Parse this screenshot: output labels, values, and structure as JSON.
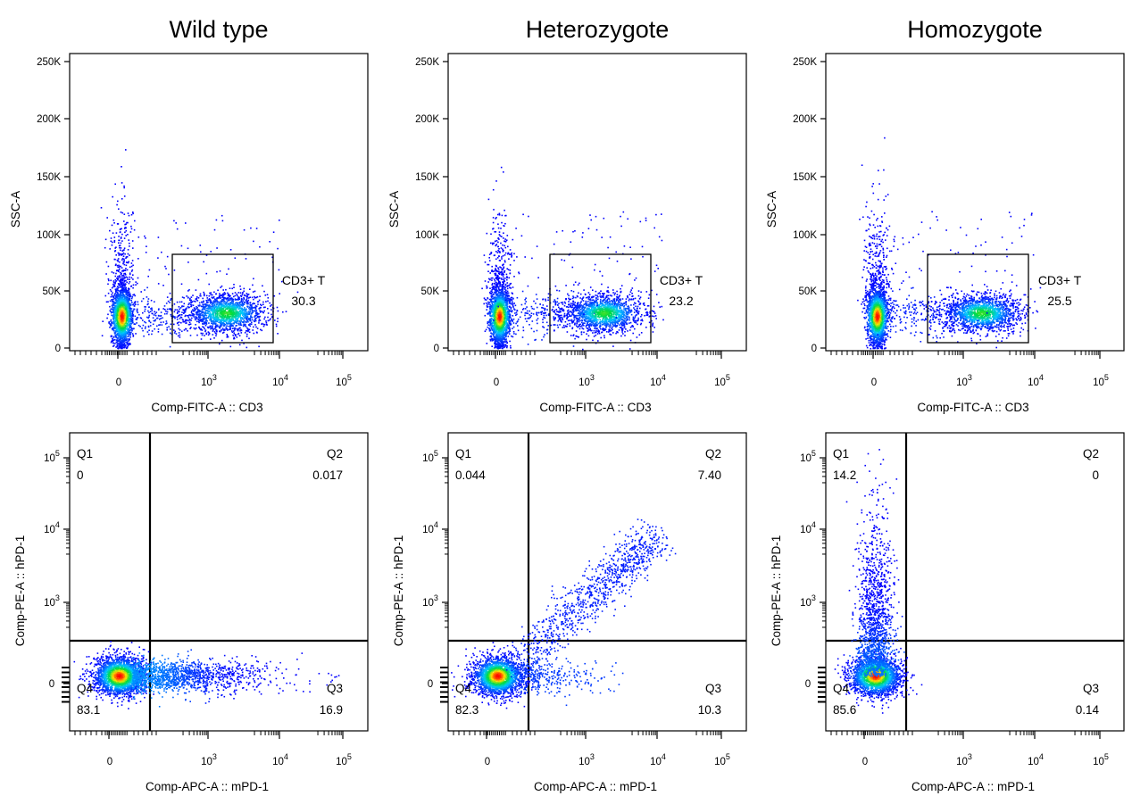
{
  "column_titles": [
    "Wild type",
    "Heterozygote",
    "Homozygote"
  ],
  "chart_data": [
    {
      "type": "scatter",
      "row": "top",
      "column": "Wild type",
      "xlabel": "Comp-FITC-A :: CD3",
      "ylabel": "SSC-A",
      "x_scale": "biexponential",
      "y_scale": "linear",
      "yticks": [
        "0",
        "50K",
        "100K",
        "150K",
        "200K",
        "250K"
      ],
      "xticks": [
        "0",
        "10^3",
        "10^4",
        "10^5"
      ],
      "gate": {
        "name": "CD3+ T",
        "value": "30.3"
      },
      "populations": [
        {
          "name": "CD3- cluster",
          "center": {
            "x": 0,
            "y": 30000
          }
        },
        {
          "name": "CD3+ T cluster",
          "center": {
            "x": 2500,
            "y": 30000
          }
        }
      ]
    },
    {
      "type": "scatter",
      "row": "top",
      "column": "Heterozygote",
      "xlabel": "Comp-FITC-A :: CD3",
      "ylabel": "SSC-A",
      "x_scale": "biexponential",
      "y_scale": "linear",
      "yticks": [
        "0",
        "50K",
        "100K",
        "150K",
        "200K",
        "250K"
      ],
      "xticks": [
        "0",
        "10^3",
        "10^4",
        "10^5"
      ],
      "gate": {
        "name": "CD3+ T",
        "value": "23.2"
      },
      "populations": [
        {
          "name": "CD3- cluster",
          "center": {
            "x": 0,
            "y": 30000
          }
        },
        {
          "name": "CD3+ T cluster",
          "center": {
            "x": 2000,
            "y": 32000
          }
        }
      ]
    },
    {
      "type": "scatter",
      "row": "top",
      "column": "Homozygote",
      "xlabel": "Comp-FITC-A :: CD3",
      "ylabel": "SSC-A",
      "x_scale": "biexponential",
      "y_scale": "linear",
      "yticks": [
        "0",
        "50K",
        "100K",
        "150K",
        "200K",
        "250K"
      ],
      "xticks": [
        "0",
        "10^3",
        "10^4",
        "10^5"
      ],
      "gate": {
        "name": "CD3+ T",
        "value": "25.5"
      },
      "populations": [
        {
          "name": "CD3- cluster",
          "center": {
            "x": 0,
            "y": 30000
          }
        },
        {
          "name": "CD3+ T cluster",
          "center": {
            "x": 2000,
            "y": 32000
          }
        }
      ]
    },
    {
      "type": "scatter",
      "row": "bottom",
      "column": "Wild type",
      "xlabel": "Comp-APC-A :: mPD-1",
      "ylabel": "Comp-PE-A :: hPD-1",
      "x_scale": "biexponential",
      "y_scale": "biexponential",
      "xticks": [
        "0",
        "10^3",
        "10^4",
        "10^5"
      ],
      "yticks": [
        "0",
        "10^3",
        "10^4",
        "10^5"
      ],
      "quadrants": {
        "Q1": "0",
        "Q2": "0.017",
        "Q3": "16.9",
        "Q4": "83.1"
      }
    },
    {
      "type": "scatter",
      "row": "bottom",
      "column": "Heterozygote",
      "xlabel": "Comp-APC-A :: mPD-1",
      "ylabel": "Comp-PE-A :: hPD-1",
      "x_scale": "biexponential",
      "y_scale": "biexponential",
      "xticks": [
        "0",
        "10^3",
        "10^4",
        "10^5"
      ],
      "yticks": [
        "0",
        "10^3",
        "10^4",
        "10^5"
      ],
      "quadrants": {
        "Q1": "0.044",
        "Q2": "7.40",
        "Q3": "10.3",
        "Q4": "82.3"
      }
    },
    {
      "type": "scatter",
      "row": "bottom",
      "column": "Homozygote",
      "xlabel": "Comp-APC-A :: mPD-1",
      "ylabel": "Comp-PE-A :: hPD-1",
      "x_scale": "biexponential",
      "y_scale": "biexponential",
      "xticks": [
        "0",
        "10^3",
        "10^4",
        "10^5"
      ],
      "yticks": [
        "0",
        "10^3",
        "10^4",
        "10^5"
      ],
      "quadrants": {
        "Q1": "14.2",
        "Q2": "0",
        "Q3": "0.14",
        "Q4": "85.6"
      }
    }
  ],
  "colors": {
    "density_low": "#0000ff",
    "density_mid": "#00c8ff",
    "density_green": "#00dc3c",
    "density_yellow": "#ffe600",
    "density_high": "#ff0000",
    "axis": "#000000"
  }
}
